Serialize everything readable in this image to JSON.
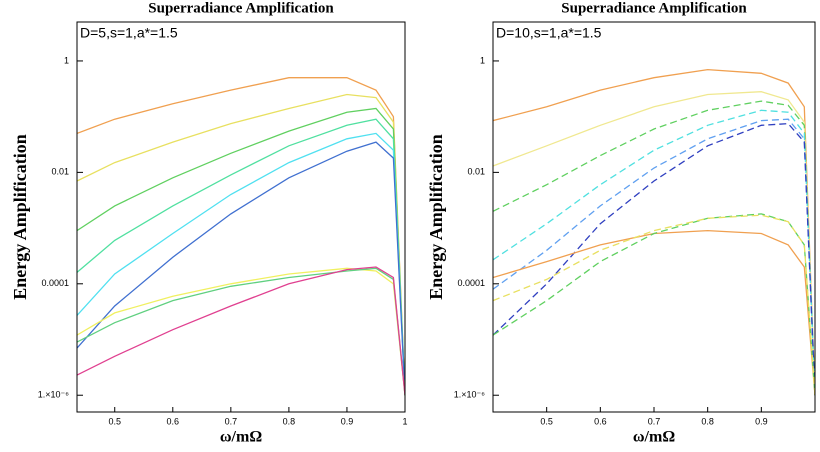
{
  "chart_data": [
    {
      "type": "line",
      "title": "Superradiance Amplification",
      "annotation": "D=5,s=1,a*=1.5",
      "xlabel": "ω/mΩ",
      "ylabel": "Energy Amplification",
      "log_y": true,
      "x": [
        0.435,
        0.5,
        0.6,
        0.7,
        0.8,
        0.9,
        0.95,
        0.98,
        1.0
      ],
      "xlim": [
        0.435,
        1.0
      ],
      "xticks": [
        0.5,
        0.6,
        0.7,
        0.8,
        0.9,
        1
      ],
      "ylim": [
        5e-07,
        5
      ],
      "yticks": [
        1,
        0.01,
        0.0001,
        {
          "value": 1e-06,
          "label": "1.×10⁻⁶"
        }
      ],
      "series": [
        {
          "color": "#f0a050",
          "values": [
            0.05,
            0.09,
            0.17,
            0.3,
            0.5,
            0.5,
            0.3,
            0.1,
            1e-06
          ]
        },
        {
          "color": "#e8e060",
          "values": [
            0.007,
            0.015,
            0.035,
            0.075,
            0.14,
            0.25,
            0.22,
            0.08,
            1e-06
          ]
        },
        {
          "color": "#60d060",
          "values": [
            0.0009,
            0.0025,
            0.008,
            0.022,
            0.055,
            0.12,
            0.14,
            0.06,
            1e-06
          ]
        },
        {
          "color": "#50e0a0",
          "values": [
            0.00016,
            0.0006,
            0.0025,
            0.009,
            0.03,
            0.07,
            0.09,
            0.04,
            1e-06
          ]
        },
        {
          "color": "#50e0f0",
          "values": [
            2.7e-05,
            0.00015,
            0.0008,
            0.004,
            0.015,
            0.04,
            0.05,
            0.025,
            1e-06
          ]
        },
        {
          "color": "#4070d0",
          "values": [
            7e-06,
            4e-05,
            0.0003,
            0.0018,
            0.008,
            0.024,
            0.035,
            0.018,
            1e-06
          ]
        },
        {
          "color": "#f0f060",
          "values": [
            1.2e-05,
            3e-05,
            6e-05,
            0.0001,
            0.00015,
            0.00019,
            0.00017,
            0.0001,
            1e-06
          ]
        },
        {
          "color": "#60d080",
          "values": [
            9e-06,
            2e-05,
            5e-05,
            9e-05,
            0.00013,
            0.00017,
            0.00019,
            0.00012,
            1e-06
          ]
        },
        {
          "color": "#e04090",
          "values": [
            2.3e-06,
            5e-06,
            1.5e-05,
            4e-05,
            0.0001,
            0.00018,
            0.0002,
            0.00013,
            1e-06
          ]
        }
      ]
    },
    {
      "type": "line",
      "title": "Superradiance Amplification",
      "annotation": "D=10,s=1,a*=1.5",
      "xlabel": "ω/mΩ",
      "ylabel": "Energy Amplification",
      "log_y": true,
      "x": [
        0.4,
        0.5,
        0.6,
        0.7,
        0.8,
        0.9,
        0.95,
        0.98,
        1.0
      ],
      "xlim": [
        0.4,
        1.0
      ],
      "xticks": [
        0.5,
        0.6,
        0.7,
        0.8,
        0.9
      ],
      "ylim": [
        5e-07,
        5
      ],
      "yticks": [
        1,
        0.01,
        0.0001,
        {
          "value": 1e-06,
          "label": "1.×10⁻⁶"
        }
      ],
      "series": [
        {
          "color": "#f0a050",
          "dash": false,
          "values": [
            0.085,
            0.15,
            0.3,
            0.5,
            0.7,
            0.6,
            0.4,
            0.15,
            1e-06
          ]
        },
        {
          "color": "#f0e890",
          "dash": false,
          "values": [
            0.013,
            0.03,
            0.07,
            0.15,
            0.25,
            0.28,
            0.2,
            0.08,
            1e-06
          ]
        },
        {
          "color": "#60d060",
          "dash": true,
          "values": [
            0.002,
            0.006,
            0.02,
            0.06,
            0.13,
            0.19,
            0.16,
            0.07,
            1e-06
          ]
        },
        {
          "color": "#50e0e0",
          "dash": true,
          "values": [
            0.00027,
            0.0012,
            0.006,
            0.025,
            0.07,
            0.13,
            0.12,
            0.05,
            1e-06
          ]
        },
        {
          "color": "#60a0f0",
          "dash": true,
          "values": [
            8e-05,
            0.0004,
            0.0025,
            0.012,
            0.04,
            0.085,
            0.09,
            0.04,
            1e-06
          ]
        },
        {
          "color": "#3040c0",
          "dash": true,
          "values": [
            1.2e-05,
            0.0001,
            0.0012,
            0.007,
            0.03,
            0.07,
            0.075,
            0.035,
            1e-06
          ]
        },
        {
          "color": "#f0a050",
          "dash": false,
          "values": [
            0.00013,
            0.00025,
            0.0005,
            0.0008,
            0.0009,
            0.0008,
            0.0005,
            0.0002,
            1e-06
          ]
        },
        {
          "color": "#60d060",
          "dash": true,
          "values": [
            1.2e-05,
            5e-05,
            0.00025,
            0.0008,
            0.0015,
            0.0018,
            0.0013,
            0.0005,
            1e-06
          ]
        },
        {
          "color": "#e8e060",
          "dash": true,
          "values": [
            5e-05,
            0.00012,
            0.0004,
            0.0009,
            0.0015,
            0.0017,
            0.0013,
            0.0005,
            1e-06
          ]
        }
      ]
    }
  ]
}
